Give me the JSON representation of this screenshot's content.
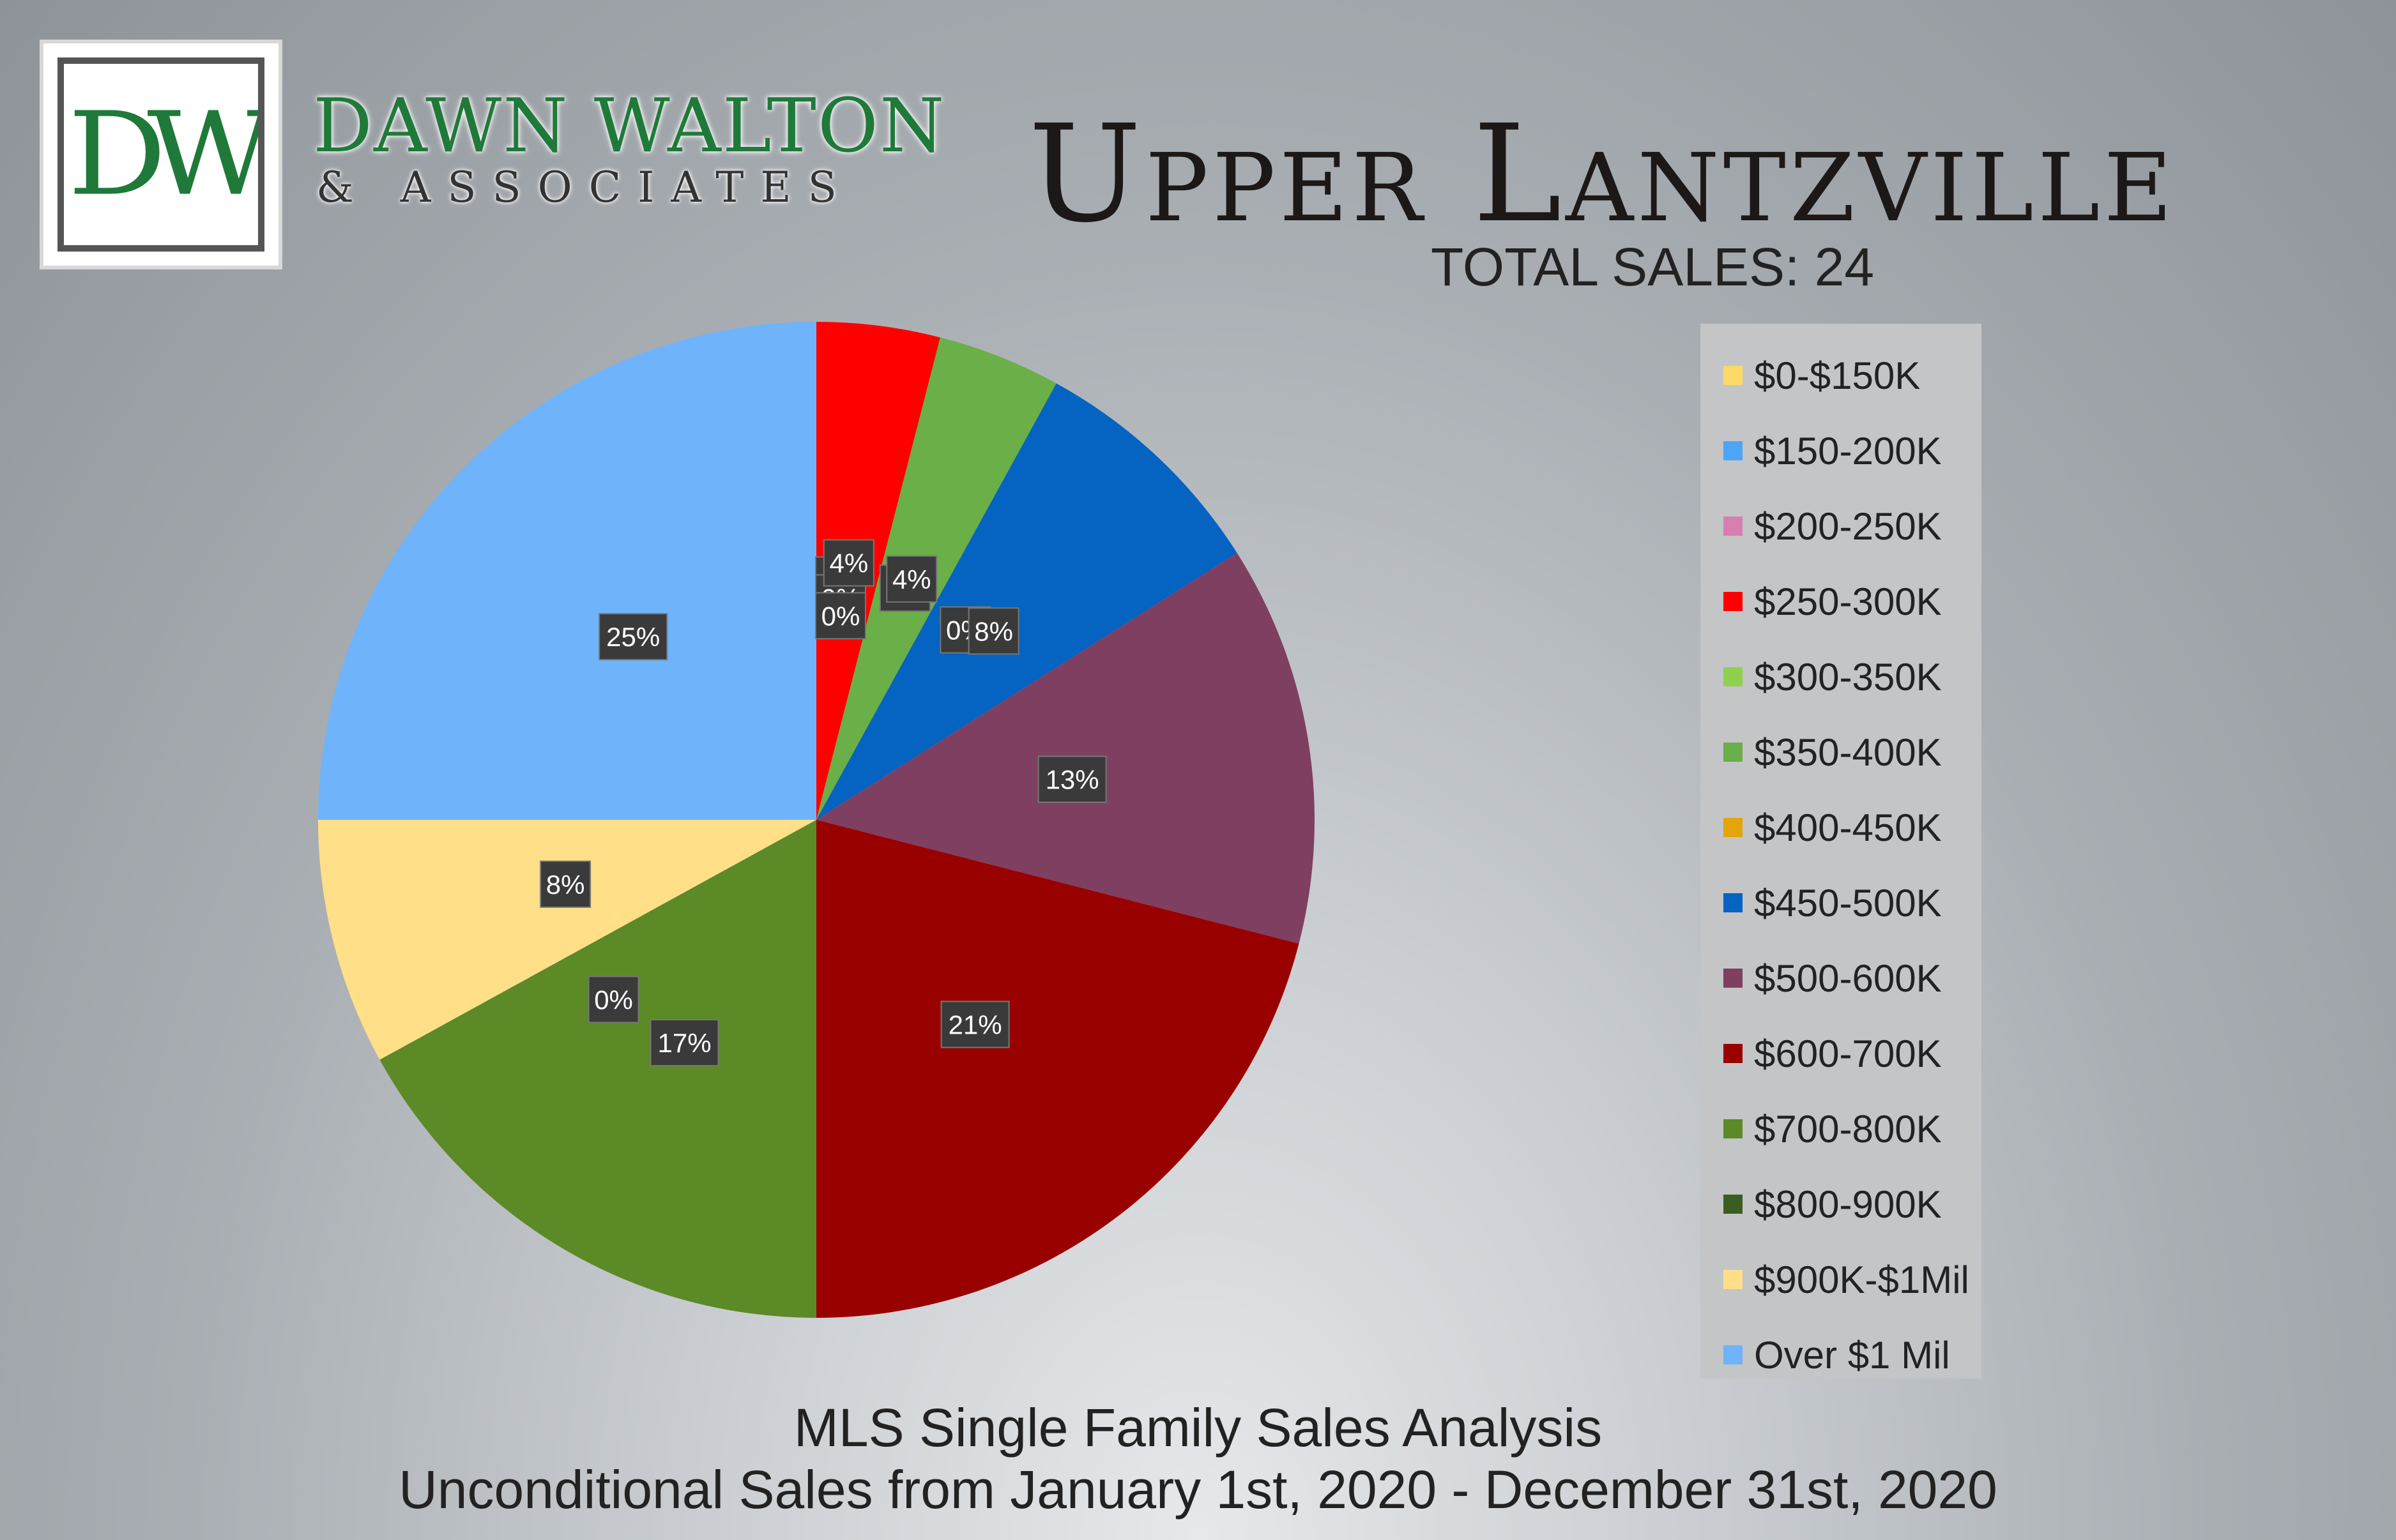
{
  "brand": {
    "monogram": "DW",
    "name": "DAWN WALTON",
    "subtitle": "& ASSOCIATES",
    "colors": {
      "green": "#1f7a3a",
      "teal": "#0f8f86"
    }
  },
  "header": {
    "title": "Upper Lantzville",
    "total_sales": "TOTAL SALES: 24"
  },
  "footer": {
    "line1": "MLS Single Family Sales Analysis",
    "line2": "Unconditional Sales from January 1st, 2020 - December 31st, 2020"
  },
  "chart_data": {
    "type": "pie",
    "categories": [
      "$0-$150K",
      "$150-200K",
      "$200-250K",
      "$250-300K",
      "$300-350K",
      "$350-400K",
      "$400-450K",
      "$450-500K",
      "$500-600K",
      "$600-700K",
      "$700-800K",
      "$800-900K",
      "$900K-$1Mil",
      "Over $1 Mil"
    ],
    "values": [
      0,
      0,
      0,
      4,
      0,
      4,
      0,
      8,
      13,
      21,
      17,
      0,
      8,
      25
    ],
    "labels": [
      "0%",
      "0%",
      "0%",
      "4%",
      "0%",
      "4%",
      "0%",
      "8%",
      "13%",
      "21%",
      "17%",
      "0%",
      "8%",
      "25%"
    ],
    "colors": [
      "#ffd966",
      "#4ea5f5",
      "#d67fb0",
      "#ff0000",
      "#8fd14f",
      "#6aaf47",
      "#e3a508",
      "#0563c1",
      "#7f3f60",
      "#990000",
      "#5b8a27",
      "#3a5e22",
      "#ffdf88",
      "#6fb3fa"
    ],
    "legend_position": "right"
  }
}
